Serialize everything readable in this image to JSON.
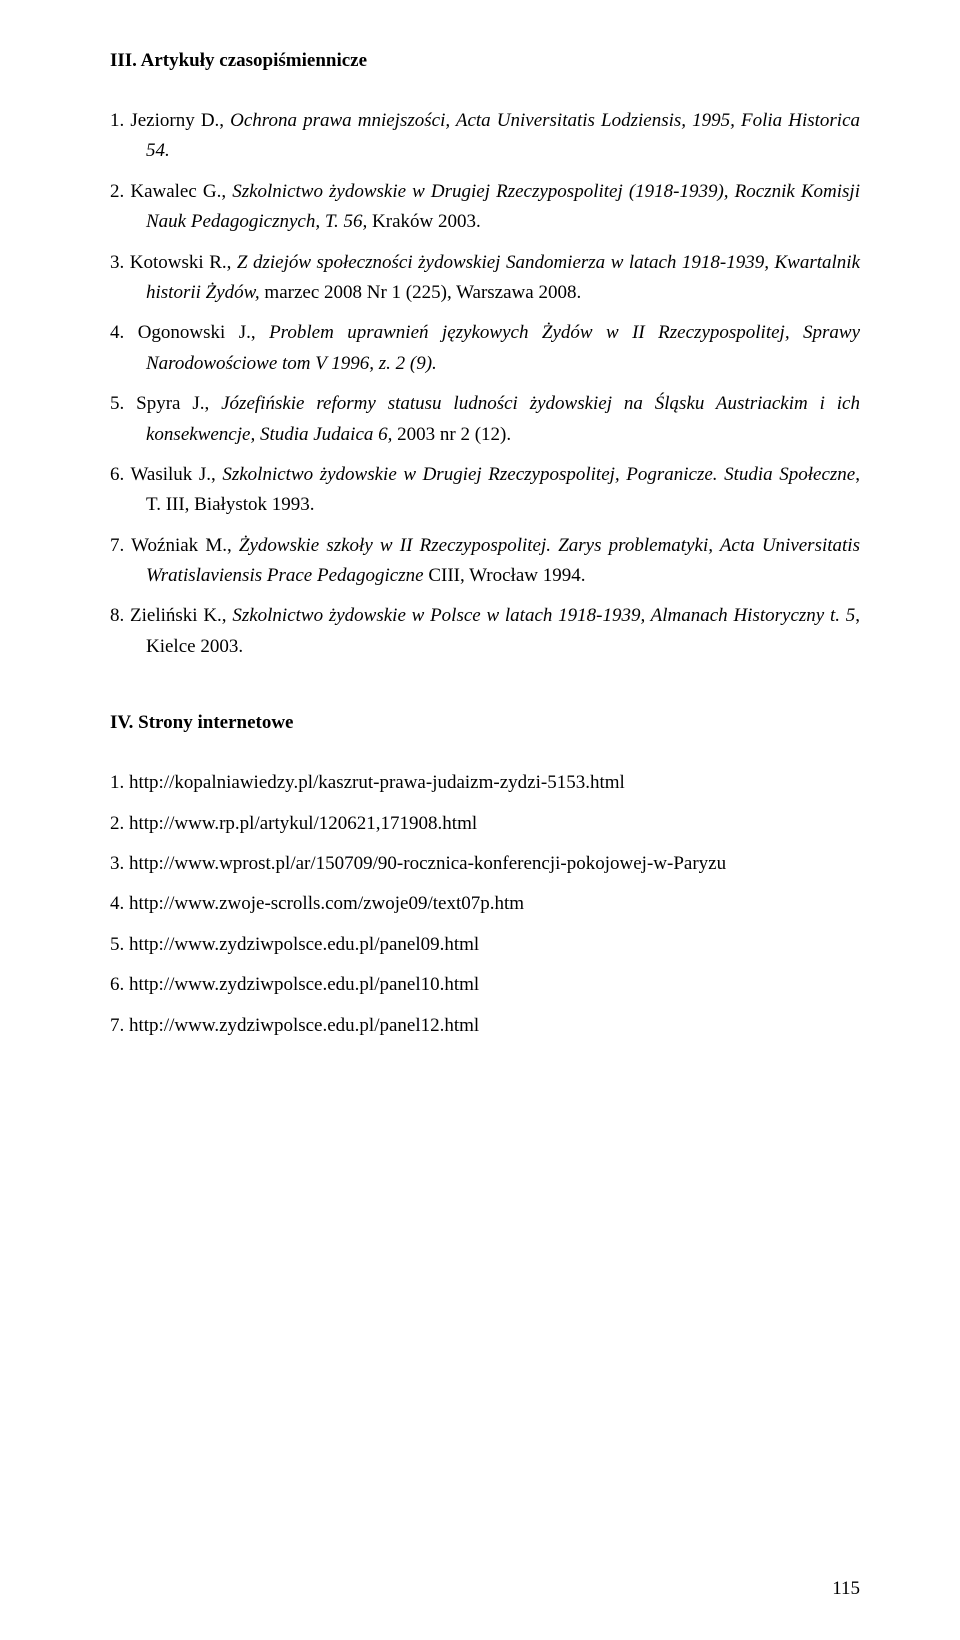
{
  "section1": {
    "heading": "III. Artykuły czasopiśmiennicze",
    "items": [
      {
        "num": "1.",
        "plain1": "Jeziorny D., ",
        "italic": "Ochrona prawa mniejszości, Acta Universitatis Lodziensis, 1995, Folia Historica 54.",
        "plain2": ""
      },
      {
        "num": "2.",
        "plain1": "Kawalec G., ",
        "italic": "Szkolnictwo żydowskie w Drugiej Rzeczypospolitej (1918-1939), Rocznik Komisji Nauk Pedagogicznych, T. 56,",
        "plain2": " Kraków 2003."
      },
      {
        "num": "3.",
        "plain1": "Kotowski R., ",
        "italic": "Z dziejów społeczności żydowskiej Sandomierza w latach 1918-1939, Kwartalnik historii Żydów,",
        "plain2": " marzec 2008 Nr 1 (225), Warszawa 2008."
      },
      {
        "num": "4.",
        "plain1": "Ogonowski J., ",
        "italic": "Problem uprawnień językowych Żydów w II Rzeczypospolitej, Sprawy Narodowościowe tom V 1996, z. 2 (9).",
        "plain2": ""
      },
      {
        "num": "5.",
        "plain1": "Spyra J., ",
        "italic": "Józefińskie reformy statusu ludności żydowskiej na Śląsku Austriackim i ich konsekwencje, Studia Judaica 6,",
        "plain2": " 2003 nr 2 (12)."
      },
      {
        "num": "6.",
        "plain1": "Wasiluk J., ",
        "italic": "Szkolnictwo żydowskie w Drugiej Rzeczypospolitej, Pogranicze. Studia Społeczne",
        "plain2": ", T. III, Białystok 1993."
      },
      {
        "num": "7.",
        "plain1": "Woźniak M., ",
        "italic": "Żydowskie szkoły w II Rzeczypospolitej. Zarys problematyki, Acta Universitatis Wratislaviensis Prace Pedagogiczne",
        "plain2": " CIII, Wrocław 1994."
      },
      {
        "num": "8.",
        "plain1": "Zieliński K., ",
        "italic": "Szkolnictwo żydowskie w Polsce w latach 1918-1939, Almanach Historyczny t. 5",
        "plain2": ", Kielce 2003."
      }
    ]
  },
  "section2": {
    "heading": "IV. Strony internetowe",
    "items": [
      {
        "num": "1.",
        "text": "http://kopalniawiedzy.pl/kaszrut-prawa-judaizm-zydzi-5153.html"
      },
      {
        "num": "2.",
        "text": "http://www.rp.pl/artykul/120621,171908.html"
      },
      {
        "num": "3.",
        "text": "http://www.wprost.pl/ar/150709/90-rocznica-konferencji-pokojowej-w-Paryzu"
      },
      {
        "num": "4.",
        "text": "http://www.zwoje-scrolls.com/zwoje09/text07p.htm"
      },
      {
        "num": "5.",
        "text": "http://www.zydziwpolsce.edu.pl/panel09.html"
      },
      {
        "num": "6.",
        "text": "http://www.zydziwpolsce.edu.pl/panel10.html"
      },
      {
        "num": "7.",
        "text": "http://www.zydziwpolsce.edu.pl/panel12.html"
      }
    ]
  },
  "pageNumber": "115"
}
